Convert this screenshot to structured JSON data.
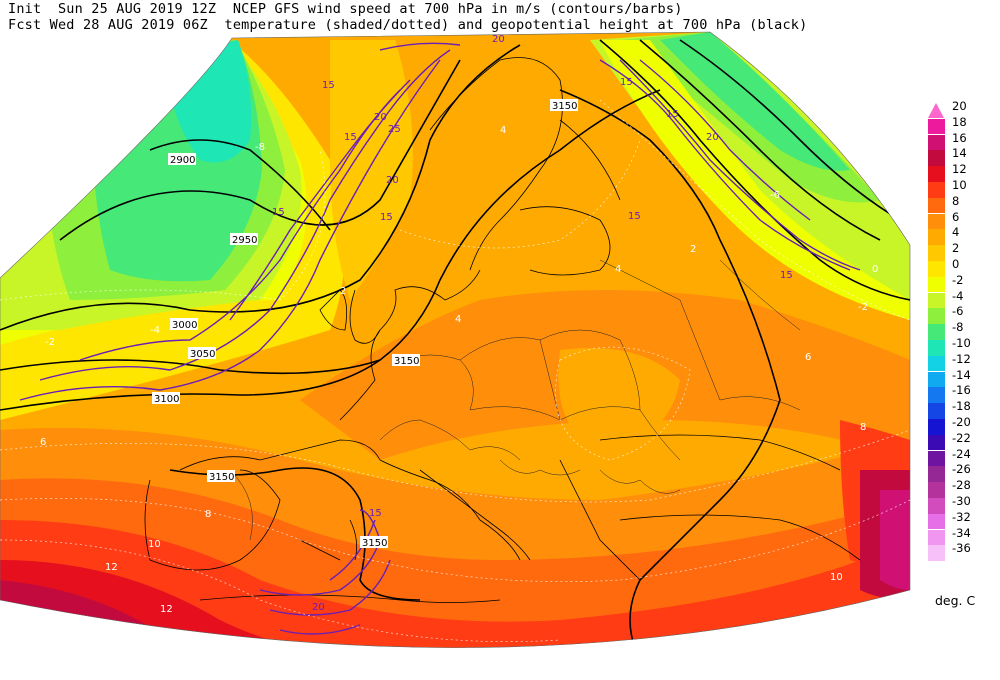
{
  "header": {
    "line1": "Init  Sun 25 AUG 2019 12Z  NCEP GFS wind speed at 700 hPa in m/s (contours/barbs)",
    "line2": "Fcst Wed 28 AUG 2019 06Z  temperature (shaded/dotted) and geopotential height at 700 hPa (black)"
  },
  "colorbar": {
    "units": "deg. C",
    "levels": [
      {
        "label": "20",
        "color": "#ff66cc"
      },
      {
        "label": "18",
        "color": "#ee1a9e"
      },
      {
        "label": "16",
        "color": "#d01072"
      },
      {
        "label": "14",
        "color": "#c20a3e"
      },
      {
        "label": "12",
        "color": "#e60f1e"
      },
      {
        "label": "10",
        "color": "#ff3c14"
      },
      {
        "label": "8",
        "color": "#ff6a0f"
      },
      {
        "label": "6",
        "color": "#ff8e0a"
      },
      {
        "label": "4",
        "color": "#ffaa00"
      },
      {
        "label": "2",
        "color": "#ffc800"
      },
      {
        "label": "0",
        "color": "#ffe600"
      },
      {
        "label": "-2",
        "color": "#f0ff00"
      },
      {
        "label": "-4",
        "color": "#c8f528"
      },
      {
        "label": "-6",
        "color": "#8ef03c"
      },
      {
        "label": "-8",
        "color": "#46e878"
      },
      {
        "label": "-10",
        "color": "#1ee6b4"
      },
      {
        "label": "-12",
        "color": "#14d2e6"
      },
      {
        "label": "-14",
        "color": "#10aaf0"
      },
      {
        "label": "-16",
        "color": "#1478f0"
      },
      {
        "label": "-18",
        "color": "#1446e6"
      },
      {
        "label": "-20",
        "color": "#1414d2"
      },
      {
        "label": "-22",
        "color": "#3c0ab4"
      },
      {
        "label": "-24",
        "color": "#6e14a0"
      },
      {
        "label": "-26",
        "color": "#962896"
      },
      {
        "label": "-28",
        "color": "#b4329c"
      },
      {
        "label": "-30",
        "color": "#d24cbe"
      },
      {
        "label": "-32",
        "color": "#e66ee6"
      },
      {
        "label": "-34",
        "color": "#f096f0"
      },
      {
        "label": "-36",
        "color": "#f8c0f8"
      }
    ]
  },
  "map_labels": {
    "height_contours": [
      "2900",
      "2950",
      "3000",
      "3050",
      "3100",
      "3150",
      "3150",
      "3150",
      "3150"
    ],
    "wind_contours": [
      "15",
      "20",
      "25",
      "15",
      "20",
      "15",
      "15",
      "20",
      "15",
      "15",
      "20",
      "15",
      "20",
      "15",
      "15"
    ],
    "temperature_labels": [
      "-8",
      "-4",
      "-2",
      "0",
      "2",
      "4",
      "6",
      "8",
      "10",
      "12",
      "4",
      "4",
      "2",
      "-6",
      "-2",
      "6",
      "8",
      "10",
      "12"
    ]
  }
}
